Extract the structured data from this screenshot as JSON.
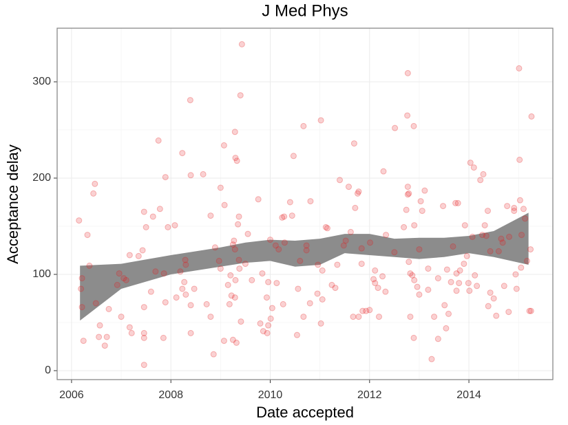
{
  "chart_data": {
    "type": "scatter",
    "title": "J Med Phys",
    "x_label": "Date accepted",
    "y_label": "Acceptance delay",
    "xlim": [
      2005.71,
      2015.69
    ],
    "ylim": [
      -9.3,
      355.7
    ],
    "xticks": [
      2006,
      2008,
      2010,
      2012,
      2014
    ],
    "yticks": [
      0,
      100,
      200,
      300
    ],
    "minor_xticks": [
      2007,
      2009,
      2011,
      2013,
      2015
    ],
    "minor_yticks": [
      50,
      150,
      250
    ],
    "grid": true,
    "color": "#e41a1c",
    "x": [
      2006.15,
      2006.21,
      2006.19,
      2006.21,
      2006.24,
      2006.32,
      2006.36,
      2006.47,
      2006.44,
      2006.49,
      2006.57,
      2006.55,
      2006.67,
      2006.71,
      2006.75,
      2006.92,
      2006.96,
      2007.0,
      2007.05,
      2007.1,
      2007.17,
      2007.17,
      2007.21,
      2007.35,
      2007.43,
      2007.46,
      2007.5,
      2007.46,
      2007.46,
      2007.46,
      2007.46,
      2007.6,
      2007.64,
      2007.69,
      2007.75,
      2007.78,
      2007.85,
      2007.86,
      2007.89,
      2007.89,
      2007.94,
      2008.08,
      2008.11,
      2008.19,
      2008.23,
      2008.23,
      2008.27,
      2008.3,
      2008.29,
      2008.3,
      2008.39,
      2008.4,
      2008.4,
      2008.4,
      2008.47,
      2008.65,
      2008.72,
      2008.8,
      2008.8,
      2008.86,
      2008.89,
      2008.97,
      2009.0,
      2009.0,
      2009.07,
      2009.08,
      2009.07,
      2009.15,
      2009.18,
      2009.2,
      2009.22,
      2009.25,
      2009.25,
      2009.27,
      2009.29,
      2009.29,
      2009.3,
      2009.33,
      2009.3,
      2009.29,
      2009.32,
      2009.35,
      2009.37,
      2009.37,
      2009.4,
      2009.43,
      2009.41,
      2009.38,
      2009.5,
      2009.55,
      2009.63,
      2009.76,
      2009.8,
      2009.84,
      2009.86,
      2009.94,
      2009.96,
      2009.93,
      2009.96,
      2010.0,
      2010.01,
      2010.04,
      2010.11,
      2010.13,
      2010.17,
      2010.24,
      2010.28,
      2010.26,
      2010.29,
      2010.4,
      2010.44,
      2010.47,
      2010.54,
      2010.56,
      2010.6,
      2010.67,
      2010.67,
      2010.73,
      2010.73,
      2010.8,
      2010.81,
      2010.95,
      2010.96,
      2011.02,
      2011.02,
      2011.05,
      2011.05,
      2011.12,
      2011.15,
      2011.24,
      2011.31,
      2011.35,
      2011.4,
      2011.48,
      2011.52,
      2011.58,
      2011.62,
      2011.67,
      2011.69,
      2011.71,
      2011.76,
      2011.78,
      2011.78,
      2011.84,
      2011.86,
      2011.84,
      2011.93,
      2012.0,
      2012.01,
      2012.08,
      2012.11,
      2012.11,
      2012.17,
      2012.19,
      2012.26,
      2012.28,
      2012.32,
      2012.33,
      2012.5,
      2012.51,
      2012.69,
      2012.74,
      2012.77,
      2012.76,
      2012.77,
      2012.79,
      2012.77,
      2012.79,
      2012.82,
      2012.82,
      2012.86,
      2012.89,
      2012.89,
      2012.9,
      2012.9,
      2012.96,
      2013.0,
      2013.0,
      2013.03,
      2013.06,
      2013.11,
      2013.18,
      2013.18,
      2013.25,
      2013.3,
      2013.38,
      2013.38,
      2013.48,
      2013.51,
      2013.54,
      2013.59,
      2013.56,
      2013.64,
      2013.68,
      2013.73,
      2013.75,
      2013.75,
      2013.78,
      2013.8,
      2013.82,
      2013.9,
      2013.92,
      2013.96,
      2013.99,
      2014.01,
      2014.03,
      2014.07,
      2014.1,
      2014.12,
      2014.16,
      2014.23,
      2014.27,
      2014.29,
      2014.32,
      2014.35,
      2014.38,
      2014.39,
      2014.43,
      2014.43,
      2014.5,
      2014.55,
      2014.6,
      2014.65,
      2014.68,
      2014.71,
      2014.77,
      2014.8,
      2014.81,
      2014.91,
      2014.91,
      2014.94,
      2014.96,
      2015.01,
      2015.02,
      2015.03,
      2015.05,
      2015.06,
      2015.1,
      2015.13,
      2015.17,
      2015.22,
      2015.25,
      2015.26,
      2015.24
    ],
    "values": [
      156,
      96,
      85,
      66,
      31,
      141,
      109,
      194,
      184,
      70,
      47,
      35,
      26,
      35,
      64,
      89,
      101,
      56,
      96,
      94,
      120,
      45,
      39,
      119,
      125,
      165,
      149,
      66,
      39,
      34,
      6,
      82,
      160,
      103,
      239,
      168,
      34,
      101,
      201,
      71,
      149,
      151,
      76,
      103,
      226,
      85,
      92,
      79,
      115,
      110,
      281,
      203,
      68,
      39,
      85,
      204,
      69,
      161,
      56,
      17,
      128,
      114,
      190,
      106,
      234,
      172,
      31,
      89,
      69,
      99,
      78,
      32,
      131,
      135,
      126,
      248,
      221,
      218,
      94,
      76,
      29,
      152,
      160,
      115,
      286,
      339,
      51,
      106,
      111,
      142,
      94,
      178,
      49,
      101,
      41,
      39,
      47,
      76,
      92,
      136,
      54,
      65,
      130,
      91,
      126,
      159,
      160,
      69,
      133,
      175,
      161,
      223,
      37,
      85,
      114,
      254,
      56,
      130,
      125,
      70,
      176,
      80,
      110,
      260,
      49,
      74,
      104,
      149,
      148,
      89,
      86,
      110,
      198,
      130,
      135,
      191,
      144,
      56,
      236,
      169,
      184,
      186,
      56,
      111,
      62,
      127,
      62,
      63,
      133,
      95,
      91,
      104,
      86,
      56,
      98,
      207,
      82,
      141,
      123,
      252,
      149,
      167,
      309,
      265,
      191,
      184,
      183,
      113,
      101,
      56,
      99,
      254,
      34,
      151,
      94,
      87,
      126,
      79,
      176,
      166,
      187,
      84,
      106,
      12,
      56,
      96,
      33,
      171,
      68,
      44,
      59,
      105,
      92,
      129,
      174,
      101,
      83,
      174,
      91,
      104,
      111,
      151,
      119,
      91,
      83,
      216,
      139,
      211,
      99,
      88,
      198,
      141,
      204,
      151,
      140,
      166,
      67,
      124,
      81,
      75,
      57,
      124,
      137,
      133,
      88,
      171,
      61,
      139,
      169,
      166,
      100,
      85,
      314,
      219,
      177,
      107,
      141,
      168,
      158,
      114,
      62,
      62,
      264,
      126
    ],
    "band": {
      "color": "#8c8c8c",
      "x": [
        2006.17,
        2007,
        2008,
        2009,
        2009.5,
        2010,
        2010.5,
        2011,
        2011.5,
        2012,
        2012.5,
        2013,
        2013.5,
        2014,
        2014.5,
        2015.2
      ],
      "lower": [
        52,
        85,
        100,
        108,
        112,
        114,
        108,
        110,
        122,
        120,
        118,
        116,
        118,
        122,
        118,
        110
      ],
      "upper": [
        109,
        111,
        120,
        128,
        133,
        136,
        135,
        137,
        142,
        142,
        137,
        138,
        138,
        140,
        145,
        164
      ]
    }
  }
}
